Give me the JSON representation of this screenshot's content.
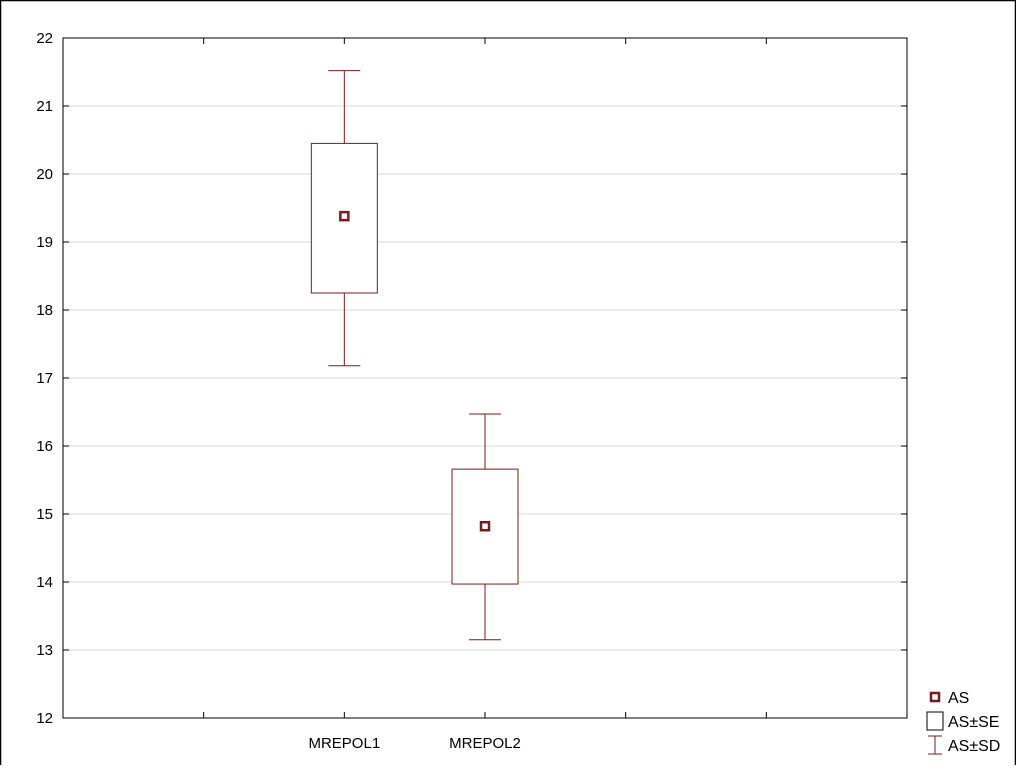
{
  "chart_data": {
    "type": "box",
    "categories": [
      "MREPOL1",
      "MREPOL2"
    ],
    "x_slots": 6,
    "category_slots": [
      2,
      3
    ],
    "ylim": [
      12,
      22
    ],
    "yticks": [
      12,
      13,
      14,
      15,
      16,
      17,
      18,
      19,
      20,
      21,
      22
    ],
    "grid": true,
    "grid_axis": "y",
    "boxes": [
      {
        "category": "MREPOL1",
        "mean": 19.38,
        "se_low": 18.25,
        "se_high": 20.45,
        "sd_low": 17.18,
        "sd_high": 21.52
      },
      {
        "category": "MREPOL2",
        "mean": 14.82,
        "se_low": 13.97,
        "se_high": 15.66,
        "sd_low": 13.15,
        "sd_high": 16.47
      }
    ],
    "legend": {
      "position": "bottom-right",
      "entries": [
        {
          "symbol": "point",
          "label": "AS"
        },
        {
          "symbol": "box",
          "label": "AS±SE"
        },
        {
          "symbol": "whisker",
          "label": "AS±SD"
        }
      ]
    },
    "colors": {
      "series": "#7a1b1b",
      "grid": "#d9d9d9",
      "axis": "#000000"
    }
  }
}
